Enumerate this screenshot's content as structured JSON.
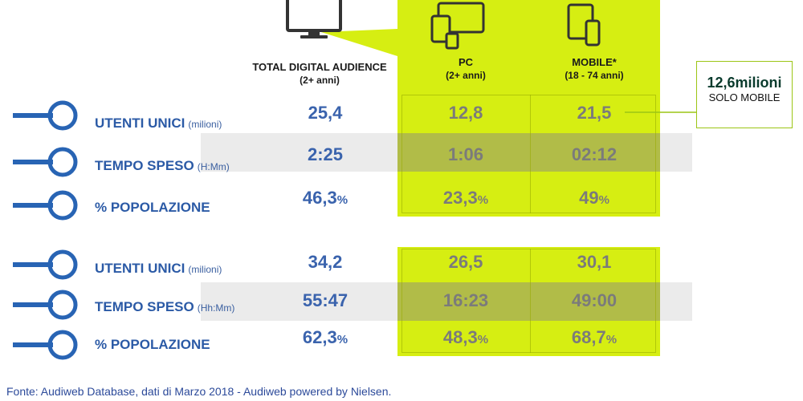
{
  "headers": {
    "total": {
      "title": "TOTAL DIGITAL AUDIENCE",
      "sub": "(2+ anni)"
    },
    "pc": {
      "title": "PC",
      "sub": "(2+ anni)"
    },
    "mobile": {
      "title": "MOBILE*",
      "sub": "(18 - 74 anni)"
    }
  },
  "callout": {
    "big": "12,6milioni",
    "small": "SOLO MOBILE"
  },
  "section1": {
    "rows": [
      {
        "label": "UTENTI UNICI",
        "unit": "(milioni)",
        "total": "25,4",
        "pc": "12,8",
        "mobile": "21,5"
      },
      {
        "label": "TEMPO SPESO",
        "unit": "(H:Mm)",
        "total": "2:25",
        "pc": "1:06",
        "mobile": "02:12"
      },
      {
        "label": "% POPOLAZIONE",
        "unit": "",
        "total": "46,3",
        "pc": "23,3",
        "mobile": "49",
        "pct": "%"
      }
    ]
  },
  "section2": {
    "rows": [
      {
        "label": "UTENTI UNICI",
        "unit": "(milioni)",
        "total": "34,2",
        "pc": "26,5",
        "mobile": "30,1"
      },
      {
        "label": "TEMPO SPESO",
        "unit": "(Hh:Mm)",
        "total": "55:47",
        "pc": "16:23",
        "mobile": "49:00"
      },
      {
        "label": "% POPOLAZIONE",
        "unit": "",
        "total": "62,3",
        "pc": "48,3",
        "mobile": "68,7",
        "pct": "%"
      }
    ]
  },
  "footer": "Fonte: Audiweb Database, dati di Marzo 2018 - Audiweb powered by Nielsen.",
  "colors": {
    "accent_green": "#d6ee12",
    "label_blue": "#2b5aa6",
    "value_blue": "#3a63ad",
    "value_gray": "#7b7b7b"
  },
  "icons": [
    "monitor-icon",
    "devices-icon",
    "tablet-phone-icon",
    "bullet-key-icon"
  ]
}
